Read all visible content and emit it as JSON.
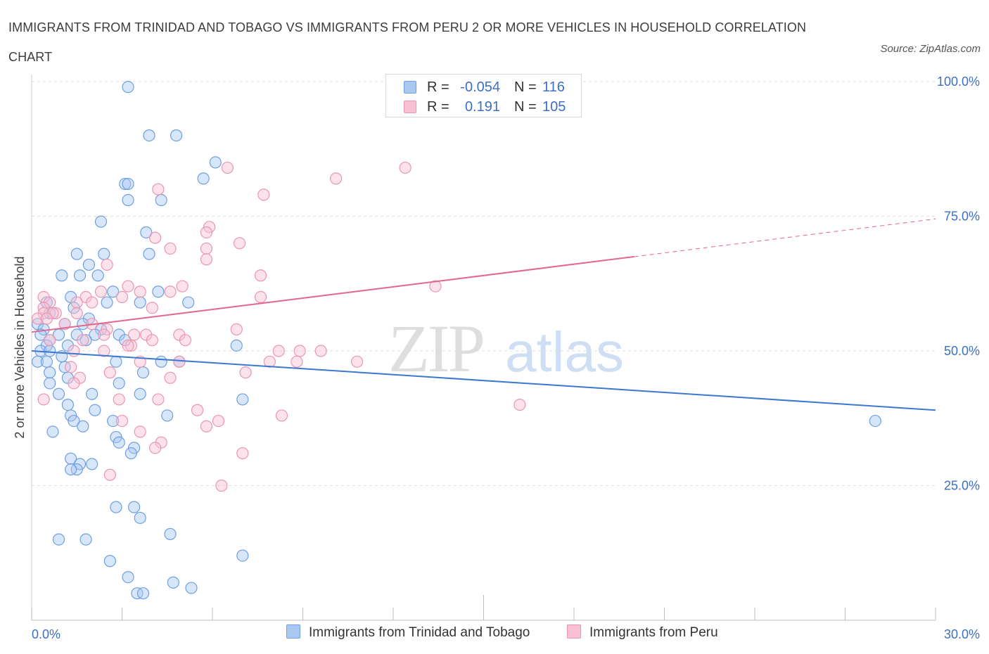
{
  "title": "IMMIGRANTS FROM TRINIDAD AND TOBAGO VS IMMIGRANTS FROM PERU 2 OR MORE VEHICLES IN HOUSEHOLD CORRELATION CHART",
  "source": "Source: ZipAtlas.com",
  "watermark": {
    "zip": "ZIP",
    "atlas": "atlas"
  },
  "legend_top": [
    {
      "r_label": "R =",
      "r_value": "-0.054",
      "n_label": "N =",
      "n_value": "116",
      "color": "#7aaae8"
    },
    {
      "r_label": "R =",
      "r_value": "0.191",
      "n_label": "N =",
      "n_value": "105",
      "color": "#f4a3be"
    }
  ],
  "legend_bottom": [
    {
      "label": "Immigrants from Trinidad and Tobago",
      "color": "#7aaae8"
    },
    {
      "label": "Immigrants from Peru",
      "color": "#f4a3be"
    }
  ],
  "colors": {
    "blue_fill": "#a9c8f2",
    "blue_stroke": "#6f9fe0",
    "blue_line": "#3b78d1",
    "pink_fill": "#f8c0d2",
    "pink_stroke": "#eb95b2",
    "pink_line": "#e2668f",
    "axis_label": "#3d6fc4",
    "grid": "#dcdcdc"
  },
  "chart_data": {
    "type": "scatter",
    "xlabel": "",
    "ylabel": "2 or more Vehicles in Household",
    "xlim": [
      0,
      30
    ],
    "ylim": [
      0,
      100
    ],
    "x_tick_labels": [
      "0.0%",
      "30.0%"
    ],
    "y_ticks": [
      {
        "value": 25,
        "label": "25.0%"
      },
      {
        "value": 50,
        "label": "50.0%"
      },
      {
        "value": 75,
        "label": "75.0%"
      },
      {
        "value": 100,
        "label": "100.0%"
      }
    ],
    "grid": "horizontal dashed",
    "series": [
      {
        "name": "Immigrants from Trinidad and Tobago",
        "r": -0.054,
        "n": 116,
        "trend": {
          "x": [
            0,
            30
          ],
          "y": [
            50.0,
            39.0
          ]
        },
        "points": [
          [
            3.2,
            99
          ],
          [
            3.9,
            90
          ],
          [
            4.8,
            90
          ],
          [
            6.1,
            85
          ],
          [
            5.7,
            82
          ],
          [
            3.1,
            81
          ],
          [
            3.2,
            81
          ],
          [
            3.2,
            78
          ],
          [
            4.3,
            78
          ],
          [
            2.3,
            74
          ],
          [
            3.8,
            72
          ],
          [
            1.5,
            68
          ],
          [
            2.4,
            68
          ],
          [
            3.9,
            68
          ],
          [
            1.9,
            66
          ],
          [
            1.6,
            64
          ],
          [
            2.2,
            64
          ],
          [
            1.0,
            64
          ],
          [
            4.2,
            61
          ],
          [
            2.7,
            61
          ],
          [
            1.3,
            60
          ],
          [
            5.2,
            59
          ],
          [
            0.5,
            59
          ],
          [
            1.4,
            58
          ],
          [
            0.6,
            57
          ],
          [
            3.6,
            59
          ],
          [
            2.5,
            59
          ],
          [
            1.9,
            56
          ],
          [
            1.7,
            55
          ],
          [
            2.3,
            54
          ],
          [
            1.1,
            55
          ],
          [
            0.2,
            55
          ],
          [
            0.4,
            54
          ],
          [
            0.3,
            53
          ],
          [
            0.9,
            53
          ],
          [
            1.5,
            53
          ],
          [
            2.1,
            53
          ],
          [
            2.9,
            53
          ],
          [
            3.1,
            52
          ],
          [
            0.6,
            52
          ],
          [
            1.8,
            52
          ],
          [
            0.5,
            51
          ],
          [
            1.2,
            51
          ],
          [
            0.3,
            50
          ],
          [
            0.6,
            50
          ],
          [
            1.0,
            49
          ],
          [
            0.2,
            48
          ],
          [
            0.5,
            48
          ],
          [
            4.3,
            48
          ],
          [
            4.9,
            48
          ],
          [
            6.8,
            51
          ],
          [
            2.8,
            48
          ],
          [
            1.1,
            47
          ],
          [
            0.6,
            46
          ],
          [
            3.7,
            46
          ],
          [
            2.9,
            44
          ],
          [
            0.6,
            44
          ],
          [
            1.2,
            45
          ],
          [
            0.9,
            42
          ],
          [
            3.6,
            42
          ],
          [
            2.0,
            42
          ],
          [
            1.2,
            40
          ],
          [
            7.0,
            41
          ],
          [
            2.1,
            39
          ],
          [
            1.3,
            38
          ],
          [
            1.4,
            37
          ],
          [
            4.5,
            38
          ],
          [
            2.7,
            37
          ],
          [
            1.7,
            36
          ],
          [
            0.7,
            35
          ],
          [
            2.8,
            34
          ],
          [
            2.9,
            33
          ],
          [
            3.4,
            32
          ],
          [
            3.3,
            31
          ],
          [
            1.3,
            30
          ],
          [
            1.6,
            29
          ],
          [
            2.0,
            29
          ],
          [
            1.5,
            28
          ],
          [
            1.3,
            28
          ],
          [
            2.8,
            21
          ],
          [
            3.4,
            21
          ],
          [
            3.6,
            19
          ],
          [
            4.6,
            16
          ],
          [
            0.9,
            15
          ],
          [
            1.8,
            15
          ],
          [
            7.0,
            12
          ],
          [
            2.6,
            11
          ],
          [
            3.2,
            8
          ],
          [
            4.7,
            7
          ],
          [
            5.3,
            6
          ],
          [
            3.5,
            5
          ],
          [
            3.7,
            5
          ],
          [
            28.0,
            37
          ]
        ]
      },
      {
        "name": "Immigrants from Peru",
        "r": 0.191,
        "n": 105,
        "trend": {
          "x": [
            0,
            20
          ],
          "y": [
            53.5,
            67.5
          ]
        },
        "trend_dashed": {
          "x": [
            20,
            30
          ],
          "y": [
            67.5,
            74.5
          ]
        },
        "points": [
          [
            12.7,
            99.5
          ],
          [
            12.2,
            99
          ],
          [
            6.5,
            84
          ],
          [
            12.4,
            84
          ],
          [
            10.1,
            82
          ],
          [
            4.2,
            80
          ],
          [
            7.7,
            79
          ],
          [
            5.9,
            73
          ],
          [
            5.8,
            72
          ],
          [
            4.1,
            71
          ],
          [
            6.9,
            70
          ],
          [
            4.6,
            69
          ],
          [
            5.8,
            69
          ],
          [
            5.8,
            67
          ],
          [
            2.5,
            66
          ],
          [
            7.6,
            64
          ],
          [
            5.0,
            62
          ],
          [
            3.2,
            62
          ],
          [
            3.6,
            61
          ],
          [
            2.3,
            61
          ],
          [
            13.4,
            62
          ],
          [
            4.6,
            61
          ],
          [
            1.8,
            60
          ],
          [
            3.0,
            60
          ],
          [
            7.6,
            60
          ],
          [
            1.5,
            59
          ],
          [
            0.4,
            60
          ],
          [
            2.0,
            59
          ],
          [
            0.6,
            59
          ],
          [
            4.0,
            58
          ],
          [
            0.4,
            58
          ],
          [
            0.4,
            57
          ],
          [
            0.8,
            57
          ],
          [
            1.5,
            57
          ],
          [
            0.7,
            57
          ],
          [
            0.2,
            56
          ],
          [
            0.5,
            56
          ],
          [
            1.1,
            55
          ],
          [
            2.0,
            55
          ],
          [
            2.5,
            54
          ],
          [
            2.4,
            53
          ],
          [
            3.4,
            53
          ],
          [
            6.8,
            54
          ],
          [
            4.9,
            53
          ],
          [
            3.8,
            53
          ],
          [
            1.7,
            52
          ],
          [
            0.6,
            52
          ],
          [
            4.0,
            52
          ],
          [
            5.1,
            52
          ],
          [
            1.4,
            50
          ],
          [
            2.4,
            50
          ],
          [
            3.3,
            51
          ],
          [
            3.2,
            51
          ],
          [
            8.2,
            50
          ],
          [
            8.9,
            50
          ],
          [
            9.6,
            50
          ],
          [
            7.9,
            48
          ],
          [
            8.8,
            48
          ],
          [
            10.8,
            48
          ],
          [
            4.9,
            48
          ],
          [
            3.6,
            48
          ],
          [
            1.3,
            47
          ],
          [
            2.6,
            46
          ],
          [
            7.1,
            46
          ],
          [
            4.6,
            45
          ],
          [
            1.6,
            45
          ],
          [
            1.4,
            44
          ],
          [
            0.4,
            41
          ],
          [
            2.9,
            41
          ],
          [
            4.2,
            41
          ],
          [
            16.2,
            40
          ],
          [
            5.5,
            39
          ],
          [
            8.3,
            38
          ],
          [
            3.0,
            37
          ],
          [
            6.2,
            37
          ],
          [
            5.8,
            36
          ],
          [
            3.6,
            35
          ],
          [
            4.3,
            33
          ],
          [
            4.1,
            32
          ],
          [
            7.0,
            31
          ],
          [
            2.6,
            27
          ],
          [
            6.3,
            25
          ]
        ]
      }
    ]
  }
}
